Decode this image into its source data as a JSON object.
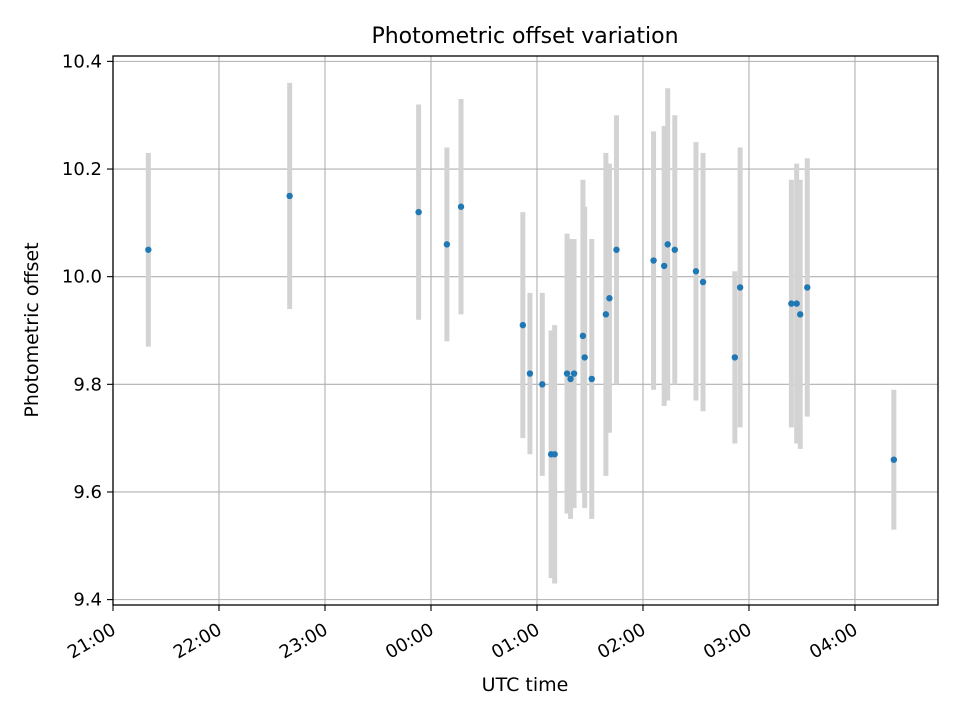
{
  "chart_data": {
    "type": "scatter",
    "title": "Photometric offset variation",
    "xlabel": "UTC time",
    "ylabel": "Photometric offset",
    "xlim": [
      "21:00",
      "04:47"
    ],
    "ylim": [
      9.39,
      10.41
    ],
    "xticks": [
      "21:00",
      "22:00",
      "23:00",
      "00:00",
      "01:00",
      "02:00",
      "03:00",
      "04:00"
    ],
    "yticks": [
      "9.4",
      "9.6",
      "9.8",
      "10.0",
      "10.2",
      "10.4"
    ],
    "grid": true,
    "marker_color": "#1f77b4",
    "errorbar_color": "#d3d3d3",
    "points": [
      {
        "t": "21:20",
        "y": 10.05,
        "err": 0.18
      },
      {
        "t": "22:40",
        "y": 10.15,
        "err": 0.21
      },
      {
        "t": "23:53",
        "y": 10.12,
        "err": 0.2
      },
      {
        "t": "00:09",
        "y": 10.06,
        "err": 0.18
      },
      {
        "t": "00:17",
        "y": 10.13,
        "err": 0.2
      },
      {
        "t": "00:52",
        "y": 9.91,
        "err": 0.21
      },
      {
        "t": "00:56",
        "y": 9.82,
        "err": 0.15
      },
      {
        "t": "01:03",
        "y": 9.8,
        "err": 0.17
      },
      {
        "t": "01:08",
        "y": 9.67,
        "err": 0.23
      },
      {
        "t": "01:10",
        "y": 9.67,
        "err": 0.24
      },
      {
        "t": "01:17",
        "y": 9.82,
        "err": 0.26
      },
      {
        "t": "01:19",
        "y": 9.81,
        "err": 0.26
      },
      {
        "t": "01:21",
        "y": 9.82,
        "err": 0.25
      },
      {
        "t": "01:26",
        "y": 9.89,
        "err": 0.29
      },
      {
        "t": "01:27",
        "y": 9.85,
        "err": 0.28
      },
      {
        "t": "01:31",
        "y": 9.81,
        "err": 0.26
      },
      {
        "t": "01:39",
        "y": 9.93,
        "err": 0.3
      },
      {
        "t": "01:41",
        "y": 9.96,
        "err": 0.25
      },
      {
        "t": "01:45",
        "y": 10.05,
        "err": 0.25
      },
      {
        "t": "02:06",
        "y": 10.03,
        "err": 0.24
      },
      {
        "t": "02:12",
        "y": 10.02,
        "err": 0.26
      },
      {
        "t": "02:14",
        "y": 10.06,
        "err": 0.29
      },
      {
        "t": "02:18",
        "y": 10.05,
        "err": 0.25
      },
      {
        "t": "02:30",
        "y": 10.01,
        "err": 0.24
      },
      {
        "t": "02:34",
        "y": 9.99,
        "err": 0.24
      },
      {
        "t": "02:52",
        "y": 9.85,
        "err": 0.16
      },
      {
        "t": "02:55",
        "y": 9.98,
        "err": 0.26
      },
      {
        "t": "03:24",
        "y": 9.95,
        "err": 0.23
      },
      {
        "t": "03:27",
        "y": 9.95,
        "err": 0.26
      },
      {
        "t": "03:29",
        "y": 9.93,
        "err": 0.25
      },
      {
        "t": "03:33",
        "y": 9.98,
        "err": 0.24
      },
      {
        "t": "04:22",
        "y": 9.66,
        "err": 0.13
      }
    ]
  }
}
